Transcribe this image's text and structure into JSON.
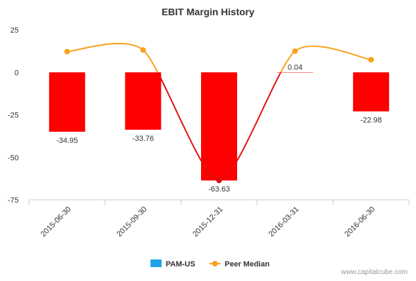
{
  "chart_data": {
    "type": "bar",
    "title": "EBIT Margin History",
    "xlabel": "",
    "ylabel": "",
    "categories": [
      "2015-06-30",
      "2015-09-30",
      "2015-12-31",
      "2016-03-31",
      "2016-06-30"
    ],
    "series": [
      {
        "name": "PAM-US",
        "type": "bar",
        "values": [
          -34.95,
          -33.76,
          -63.63,
          0.04,
          -22.98
        ],
        "data_labels": [
          "-34.95",
          "-33.76",
          "-63.63",
          "0.04",
          "-22.98"
        ]
      },
      {
        "name": "Peer Median",
        "type": "line",
        "values": [
          12.2,
          13.1,
          -63.6,
          12.5,
          7.4
        ]
      }
    ],
    "ylim": [
      -75,
      25
    ],
    "yticks": [
      25,
      0,
      -25,
      -50,
      -75
    ],
    "grid": false,
    "legend_position": "bottom"
  },
  "watermark": "www.capitalcube.com",
  "colors": {
    "bar": "#ff0000",
    "bar_legend": "#1ea3ec",
    "peer_line_positive": "#f7a21b",
    "peer_line_negative": "#dd1111",
    "peer_marker": "#f7a21b",
    "text": "#333333",
    "axis": "#c0d0e0"
  }
}
